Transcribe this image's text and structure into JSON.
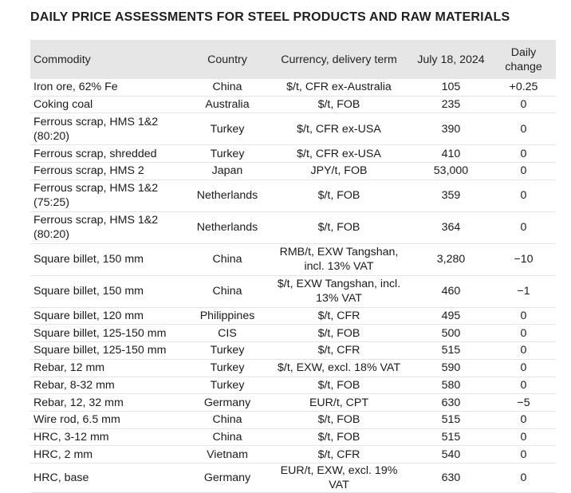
{
  "title": "DAILY PRICE ASSESSMENTS FOR STEEL PRODUCTS AND RAW MATERIALS",
  "headers": {
    "commodity": "Commodity",
    "country": "Country",
    "currency": "Currency, delivery term",
    "date": "July 18, 2024",
    "change_line1": "Daily",
    "change_line2": "change"
  },
  "rows": [
    {
      "commodity": "Iron ore, 62% Fe",
      "country": "China",
      "currency": "$/t, CFR ex-Australia",
      "price": "105",
      "change": "+0.25"
    },
    {
      "commodity": "Coking coal",
      "country": "Australia",
      "currency": "$/t, FOB",
      "price": "235",
      "change": "0"
    },
    {
      "commodity": "Ferrous scrap, HMS 1&2 (80:20)",
      "country": "Turkey",
      "currency": "$/t, CFR ex-USA",
      "price": "390",
      "change": "0"
    },
    {
      "commodity": "Ferrous scrap, shredded",
      "country": "Turkey",
      "currency": "$/t, CFR ex-USA",
      "price": "410",
      "change": "0"
    },
    {
      "commodity": "Ferrous scrap, HMS 2",
      "country": "Japan",
      "currency": "JPY/t, FOB",
      "price": "53,000",
      "change": "0"
    },
    {
      "commodity": "Ferrous scrap, HMS 1&2 (75:25)",
      "country": "Netherlands",
      "currency": "$/t, FOB",
      "price": "359",
      "change": "0"
    },
    {
      "commodity": "Ferrous scrap, HMS 1&2 (80:20)",
      "country": "Netherlands",
      "currency": "$/t, FOB",
      "price": "364",
      "change": "0"
    },
    {
      "commodity": "Square billet, 150 mm",
      "country": "China",
      "currency": "RMB/t, EXW Tangshan, incl. 13% VAT",
      "price": "3,280",
      "change": "−10"
    },
    {
      "commodity": "Square billet, 150 mm",
      "country": "China",
      "currency": "$/t, EXW Tangshan, incl. 13% VAT",
      "price": "460",
      "change": "−1"
    },
    {
      "commodity": "Square billet, 120 mm",
      "country": "Philippines",
      "currency": "$/t, CFR",
      "price": "495",
      "change": "0"
    },
    {
      "commodity": "Square billet, 125-150 mm",
      "country": "CIS",
      "currency": "$/t, FOB",
      "price": "500",
      "change": "0"
    },
    {
      "commodity": "Square billet, 125-150 mm",
      "country": "Turkey",
      "currency": "$/t, CFR",
      "price": "515",
      "change": "0"
    },
    {
      "commodity": "Rebar, 12 mm",
      "country": "Turkey",
      "currency": "$/t, EXW, excl. 18% VAT",
      "price": "590",
      "change": "0"
    },
    {
      "commodity": "Rebar, 8-32 mm",
      "country": "Turkey",
      "currency": "$/t, FOB",
      "price": "580",
      "change": "0"
    },
    {
      "commodity": "Rebar, 12, 32 mm",
      "country": "Germany",
      "currency": "EUR/t, CPT",
      "price": "630",
      "change": "−5"
    },
    {
      "commodity": "Wire rod, 6.5 mm",
      "country": "China",
      "currency": "$/t, FOB",
      "price": "515",
      "change": "0"
    },
    {
      "commodity": "HRC, 3-12 mm",
      "country": "China",
      "currency": "$/t, FOB",
      "price": "515",
      "change": "0"
    },
    {
      "commodity": "HRC, 2 mm",
      "country": "Vietnam",
      "currency": "$/t, CFR",
      "price": "540",
      "change": "0"
    },
    {
      "commodity": "HRC, base",
      "country": "Germany",
      "currency": "EUR/t, EXW, excl. 19% VAT",
      "price": "630",
      "change": "0"
    }
  ]
}
